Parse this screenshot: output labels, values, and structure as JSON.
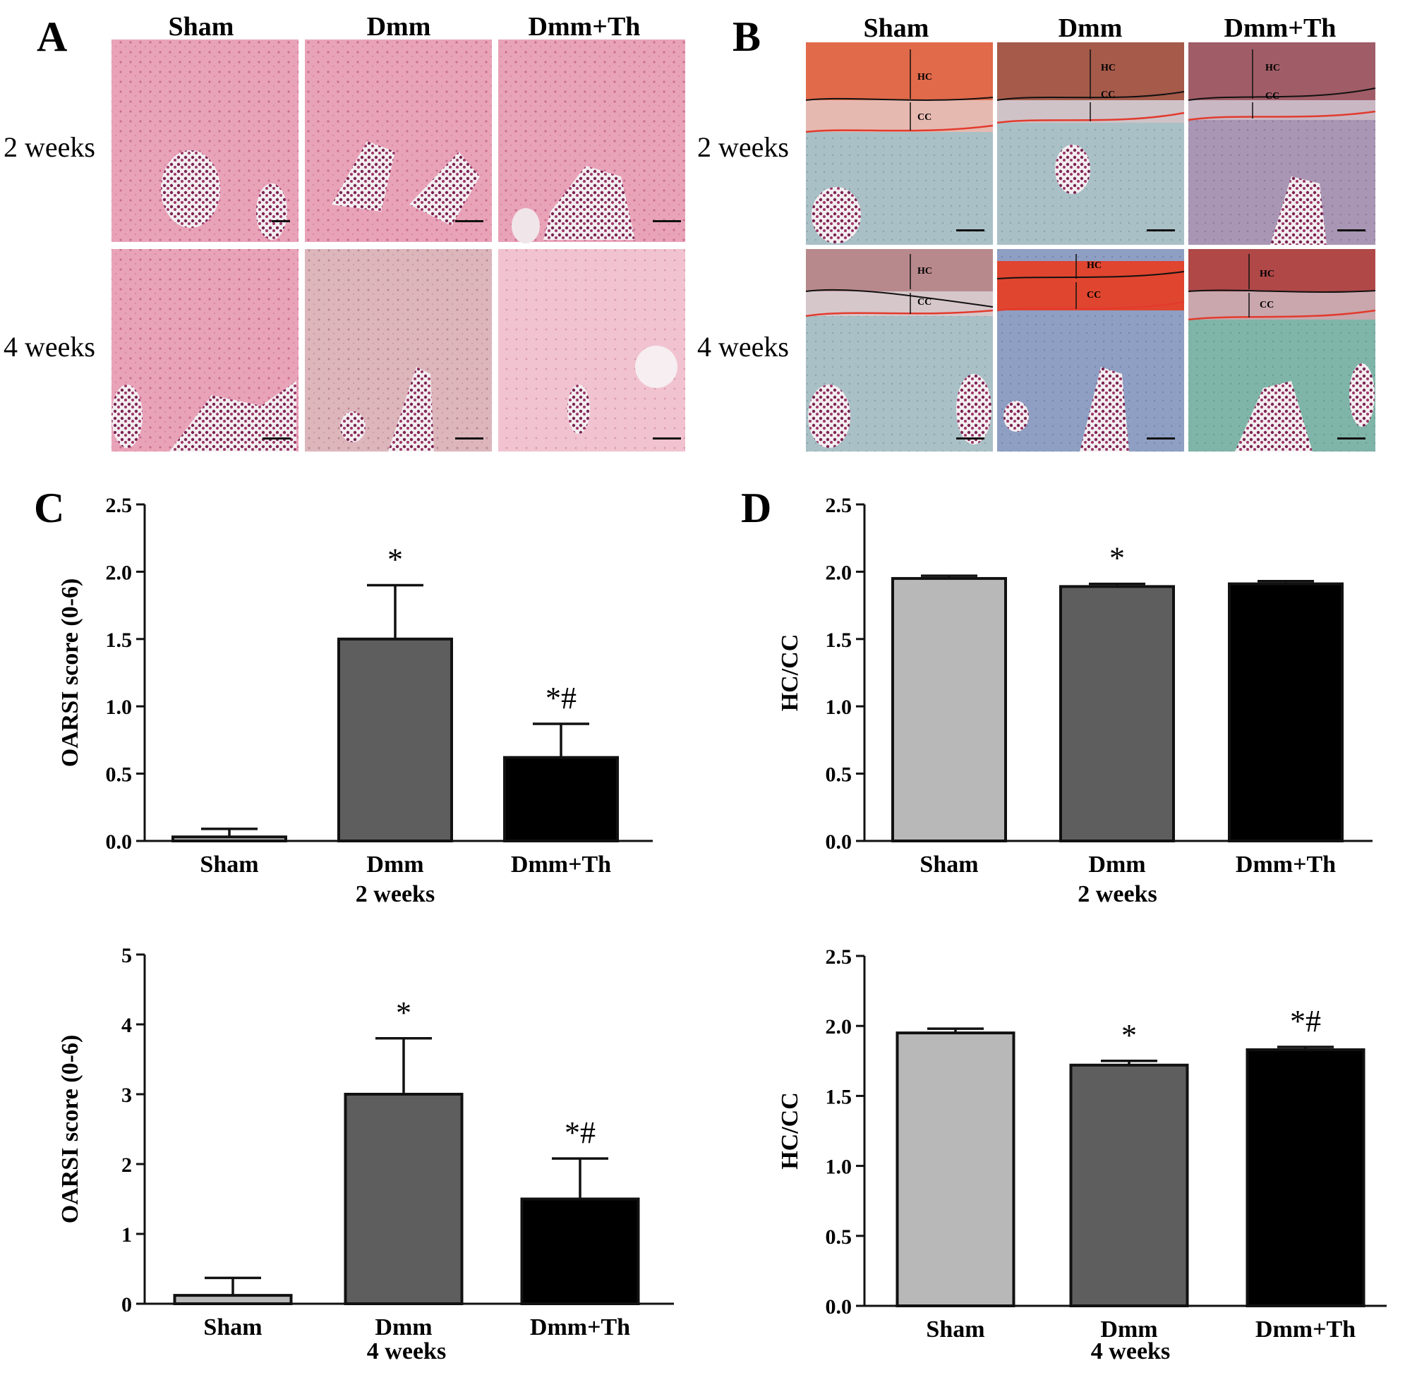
{
  "panels": {
    "A": {
      "letter": "A",
      "columns": [
        "Sham",
        "Dmm",
        "Dmm+Th"
      ],
      "rows": [
        "2 weeks",
        "4 weeks"
      ]
    },
    "B": {
      "letter": "B",
      "columns": [
        "Sham",
        "Dmm",
        "Dmm+Th"
      ],
      "rows": [
        "2 weeks",
        "4 weeks"
      ],
      "zone_labels": [
        "HC",
        "CC"
      ]
    },
    "C": {
      "letter": "C"
    },
    "D": {
      "letter": "D"
    }
  },
  "colors": {
    "sham": "#b8b8b8",
    "dmm": "#5e5e5e",
    "dmm_th": "#000000",
    "he_stain": "#e8a6bb",
    "safranin": "#e0603e",
    "fast_green": "#9fb8c0",
    "marrow": "#8a2a55"
  },
  "chart_data": [
    {
      "id": "C1",
      "type": "bar",
      "categories": [
        "Sham",
        "Dmm",
        "Dmm+Th"
      ],
      "values": [
        0.03,
        1.5,
        0.62
      ],
      "errors": [
        0.06,
        0.4,
        0.25
      ],
      "significance": [
        "",
        "*",
        "*#"
      ],
      "ylabel": "OARSI score (0-6)",
      "xlabel": "2 weeks",
      "ylim": [
        0,
        2.5
      ],
      "yticks": [
        "0.0",
        "0.5",
        "1.0",
        "1.5",
        "2.0",
        "2.5"
      ]
    },
    {
      "id": "C2",
      "type": "bar",
      "categories": [
        "Sham",
        "Dmm",
        "Dmm+Th"
      ],
      "values": [
        0.12,
        3.0,
        1.5
      ],
      "errors": [
        0.25,
        0.8,
        0.58
      ],
      "significance": [
        "",
        "*",
        "*#"
      ],
      "ylabel": "OARSI score (0-6)",
      "xlabel": "4 weeks",
      "ylim": [
        0,
        5
      ],
      "yticks": [
        "0",
        "1",
        "2",
        "3",
        "4",
        "5"
      ]
    },
    {
      "id": "D1",
      "type": "bar",
      "categories": [
        "Sham",
        "Dmm",
        "Dmm+Th"
      ],
      "values": [
        1.95,
        1.89,
        1.91
      ],
      "errors": [
        0.02,
        0.02,
        0.02
      ],
      "significance": [
        "",
        "*",
        ""
      ],
      "ylabel": "HC/CC",
      "xlabel": "2 weeks",
      "ylim": [
        0,
        2.5
      ],
      "yticks": [
        "0.0",
        "0.5",
        "1.0",
        "1.5",
        "2.0",
        "2.5"
      ]
    },
    {
      "id": "D2",
      "type": "bar",
      "categories": [
        "Sham",
        "Dmm",
        "Dmm+Th"
      ],
      "values": [
        1.95,
        1.72,
        1.83
      ],
      "errors": [
        0.03,
        0.03,
        0.02
      ],
      "significance": [
        "",
        "*",
        "*#"
      ],
      "ylabel": "HC/CC",
      "xlabel": "4 weeks",
      "ylim": [
        0,
        2.5
      ],
      "yticks": [
        "0.0",
        "0.5",
        "1.0",
        "1.5",
        "2.0",
        "2.5"
      ]
    }
  ]
}
